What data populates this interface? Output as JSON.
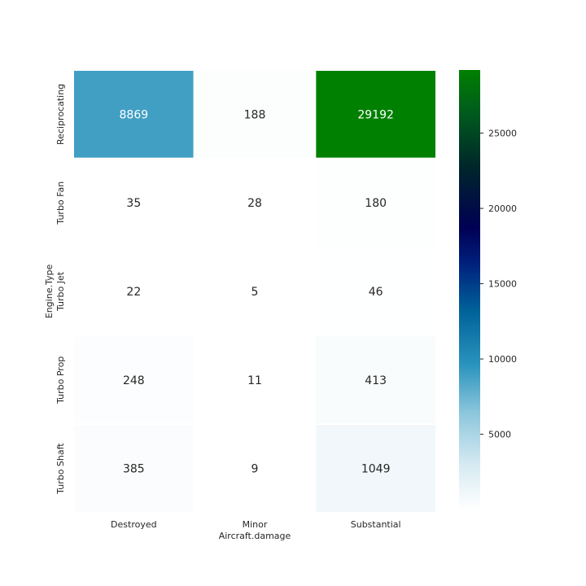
{
  "chart_data": {
    "type": "heatmap",
    "xlabel": "Aircraft.damage",
    "ylabel": "Engine.Type",
    "x_categories": [
      "Destroyed",
      "Minor",
      "Substantial"
    ],
    "y_categories": [
      "Reciprocating",
      "Turbo Fan",
      "Turbo Jet",
      "Turbo Prop",
      "Turbo Shaft"
    ],
    "values": [
      [
        8869,
        188,
        29192
      ],
      [
        35,
        28,
        180
      ],
      [
        22,
        5,
        46
      ],
      [
        248,
        11,
        413
      ],
      [
        385,
        9,
        1049
      ]
    ],
    "colormap": "ocean_r",
    "colorbar": {
      "min": 5,
      "max": 29192,
      "ticks": [
        5000,
        10000,
        15000,
        20000,
        25000
      ]
    }
  }
}
